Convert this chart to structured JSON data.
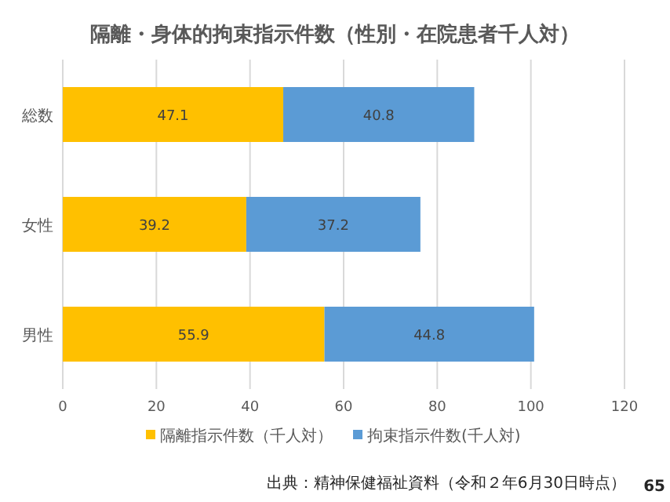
{
  "chart_data": {
    "type": "bar",
    "orientation": "horizontal",
    "stacked": true,
    "title": "隔離・身体的拘束指示件数（性別・在院患者千人対）",
    "categories": [
      "総数",
      "女性",
      "男性"
    ],
    "series": [
      {
        "name": "隔離指示件数（千人対）",
        "color": "#ffc000",
        "values": [
          47.1,
          39.2,
          55.9
        ]
      },
      {
        "name": "拘束指示件数(千人対)",
        "color": "#5b9bd5",
        "values": [
          40.8,
          37.2,
          44.8
        ]
      }
    ],
    "xlim": [
      0,
      120
    ],
    "xticks": [
      0,
      20,
      40,
      60,
      80,
      100,
      120
    ],
    "grid": "x",
    "legend": "bottom",
    "data_labels": true,
    "annotations": [
      "出典：精神保健福祉資料（令和２年6月30日時点）",
      "65"
    ]
  }
}
